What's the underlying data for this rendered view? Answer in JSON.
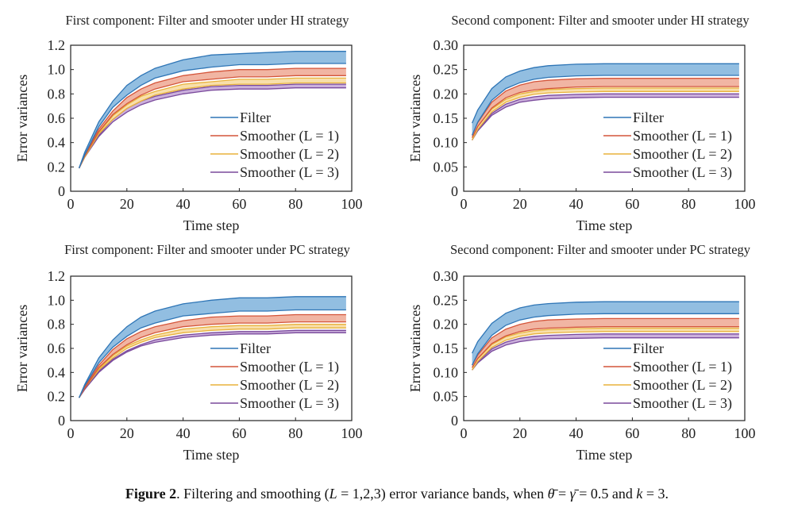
{
  "figure": {
    "caption_label": "Figure 2",
    "caption_text1": ". Filtering and smoothing (",
    "caption_L": "L",
    "caption_text2": " = 1,2,3) error variance bands, when ",
    "caption_theta": "θ̄",
    "caption_text3": " = ",
    "caption_gamma": "γ̄",
    "caption_text4": " = 0.5 and ",
    "caption_k": "k",
    "caption_text5": " = 3."
  },
  "colors": {
    "filter": {
      "line": "#2e75b6",
      "fill": "#7fb3dc"
    },
    "smoother1": {
      "line": "#d4553a",
      "fill": "#efa893"
    },
    "smoother2": {
      "line": "#e8b23c",
      "fill": "#f7d99c"
    },
    "smoother3": {
      "line": "#7a4a9c",
      "fill": "#c2a2d6"
    }
  },
  "chart_data": [
    {
      "type": "area",
      "title": "First component: Filter and smooter under HI strategy",
      "xlabel": "Time step",
      "ylabel": "Error variances",
      "xlim": [
        0,
        100
      ],
      "ylim": [
        0,
        1.2
      ],
      "xticks": [
        "0",
        "20",
        "40",
        "60",
        "80",
        "100"
      ],
      "yticks": [
        "0",
        "0.2",
        "0.4",
        "0.6",
        "0.8",
        "1.0",
        "1.2"
      ],
      "legend_position": "center-right",
      "x": [
        3,
        5,
        10,
        15,
        20,
        25,
        30,
        40,
        50,
        60,
        70,
        80,
        90,
        98
      ],
      "series": [
        {
          "name": "Filter",
          "key": "filter",
          "upper": [
            0.19,
            0.32,
            0.57,
            0.74,
            0.87,
            0.95,
            1.01,
            1.08,
            1.12,
            1.13,
            1.14,
            1.15,
            1.15,
            1.15
          ],
          "lower": [
            0.19,
            0.3,
            0.53,
            0.69,
            0.79,
            0.87,
            0.93,
            0.99,
            1.02,
            1.04,
            1.04,
            1.05,
            1.05,
            1.05
          ]
        },
        {
          "name": "Smoother (L = 1)",
          "key": "smoother1",
          "upper": [
            0.19,
            0.3,
            0.51,
            0.66,
            0.77,
            0.84,
            0.89,
            0.95,
            0.98,
            1.0,
            1.0,
            1.01,
            1.01,
            1.01
          ],
          "lower": [
            0.19,
            0.29,
            0.49,
            0.63,
            0.72,
            0.79,
            0.84,
            0.9,
            0.92,
            0.94,
            0.94,
            0.95,
            0.95,
            0.95
          ]
        },
        {
          "name": "Smoother (L = 2)",
          "key": "smoother2",
          "upper": [
            0.19,
            0.29,
            0.48,
            0.62,
            0.71,
            0.78,
            0.82,
            0.88,
            0.9,
            0.92,
            0.92,
            0.93,
            0.93,
            0.93
          ],
          "lower": [
            0.19,
            0.28,
            0.47,
            0.59,
            0.68,
            0.74,
            0.79,
            0.84,
            0.87,
            0.88,
            0.88,
            0.89,
            0.89,
            0.89
          ]
        },
        {
          "name": "Smoother (L = 3)",
          "key": "smoother3",
          "upper": [
            0.19,
            0.28,
            0.46,
            0.59,
            0.68,
            0.74,
            0.78,
            0.83,
            0.86,
            0.87,
            0.87,
            0.88,
            0.88,
            0.88
          ],
          "lower": [
            0.19,
            0.28,
            0.45,
            0.57,
            0.65,
            0.71,
            0.75,
            0.8,
            0.83,
            0.84,
            0.84,
            0.85,
            0.85,
            0.85
          ]
        }
      ]
    },
    {
      "type": "area",
      "title": "Second component: Filter and smooter under HI strategy",
      "xlabel": "Time step",
      "ylabel": "Error variances",
      "xlim": [
        0,
        100
      ],
      "ylim": [
        0,
        0.3
      ],
      "xticks": [
        "0",
        "20",
        "40",
        "60",
        "80",
        "100"
      ],
      "yticks": [
        "0",
        "0.05",
        "0.10",
        "0.15",
        "0.20",
        "0.25",
        "0.30"
      ],
      "legend_position": "center-right",
      "x": [
        3,
        5,
        10,
        15,
        20,
        25,
        30,
        40,
        50,
        60,
        70,
        80,
        90,
        98
      ],
      "series": [
        {
          "name": "Filter",
          "key": "filter",
          "upper": [
            0.14,
            0.167,
            0.211,
            0.235,
            0.247,
            0.254,
            0.258,
            0.261,
            0.262,
            0.262,
            0.262,
            0.262,
            0.262,
            0.262
          ],
          "lower": [
            0.115,
            0.142,
            0.187,
            0.211,
            0.223,
            0.23,
            0.234,
            0.237,
            0.238,
            0.238,
            0.238,
            0.238,
            0.238,
            0.238
          ]
        },
        {
          "name": "Smoother (L = 1)",
          "key": "smoother1",
          "upper": [
            0.115,
            0.141,
            0.183,
            0.206,
            0.218,
            0.225,
            0.228,
            0.231,
            0.232,
            0.232,
            0.232,
            0.232,
            0.232,
            0.232
          ],
          "lower": [
            0.11,
            0.133,
            0.171,
            0.192,
            0.203,
            0.208,
            0.211,
            0.214,
            0.215,
            0.215,
            0.215,
            0.215,
            0.215,
            0.215
          ]
        },
        {
          "name": "Smoother (L = 2)",
          "key": "smoother2",
          "upper": [
            0.11,
            0.133,
            0.169,
            0.189,
            0.2,
            0.205,
            0.209,
            0.211,
            0.212,
            0.212,
            0.212,
            0.212,
            0.212,
            0.212
          ],
          "lower": [
            0.105,
            0.127,
            0.163,
            0.183,
            0.193,
            0.199,
            0.202,
            0.204,
            0.205,
            0.205,
            0.205,
            0.205,
            0.205,
            0.205
          ]
        },
        {
          "name": "Smoother (L = 3)",
          "key": "smoother3",
          "upper": [
            0.105,
            0.126,
            0.16,
            0.179,
            0.189,
            0.194,
            0.197,
            0.199,
            0.2,
            0.2,
            0.2,
            0.2,
            0.2,
            0.2
          ],
          "lower": [
            0.105,
            0.124,
            0.156,
            0.173,
            0.183,
            0.187,
            0.19,
            0.192,
            0.193,
            0.193,
            0.193,
            0.193,
            0.193,
            0.193
          ]
        }
      ]
    },
    {
      "type": "area",
      "title": "First component: Filter and smooter under PC strategy",
      "xlabel": "Time step",
      "ylabel": "Error variances",
      "xlim": [
        0,
        100
      ],
      "ylim": [
        0,
        1.2
      ],
      "xticks": [
        "0",
        "20",
        "40",
        "60",
        "80",
        "100"
      ],
      "yticks": [
        "0",
        "0.2",
        "0.4",
        "0.6",
        "0.8",
        "1.0",
        "1.2"
      ],
      "legend_position": "center-right",
      "x": [
        3,
        5,
        10,
        15,
        20,
        25,
        30,
        40,
        50,
        60,
        70,
        80,
        90,
        98
      ],
      "series": [
        {
          "name": "Filter",
          "key": "filter",
          "upper": [
            0.19,
            0.3,
            0.52,
            0.67,
            0.78,
            0.86,
            0.91,
            0.97,
            1.0,
            1.02,
            1.02,
            1.03,
            1.03,
            1.03
          ],
          "lower": [
            0.19,
            0.29,
            0.48,
            0.61,
            0.7,
            0.77,
            0.81,
            0.87,
            0.89,
            0.91,
            0.91,
            0.92,
            0.92,
            0.92
          ]
        },
        {
          "name": "Smoother (L = 1)",
          "key": "smoother1",
          "upper": [
            0.19,
            0.28,
            0.46,
            0.59,
            0.68,
            0.74,
            0.78,
            0.83,
            0.86,
            0.87,
            0.87,
            0.88,
            0.88,
            0.88
          ],
          "lower": [
            0.19,
            0.27,
            0.44,
            0.55,
            0.63,
            0.69,
            0.73,
            0.78,
            0.8,
            0.81,
            0.81,
            0.82,
            0.82,
            0.82
          ]
        },
        {
          "name": "Smoother (L = 2)",
          "key": "smoother2",
          "upper": [
            0.19,
            0.27,
            0.43,
            0.54,
            0.62,
            0.67,
            0.71,
            0.76,
            0.78,
            0.79,
            0.79,
            0.8,
            0.8,
            0.8
          ],
          "lower": [
            0.19,
            0.27,
            0.42,
            0.52,
            0.6,
            0.65,
            0.69,
            0.73,
            0.75,
            0.76,
            0.76,
            0.77,
            0.77,
            0.77
          ]
        },
        {
          "name": "Smoother (L = 3)",
          "key": "smoother3",
          "upper": [
            0.19,
            0.26,
            0.41,
            0.51,
            0.58,
            0.63,
            0.67,
            0.71,
            0.73,
            0.74,
            0.74,
            0.75,
            0.75,
            0.75
          ],
          "lower": [
            0.19,
            0.26,
            0.4,
            0.5,
            0.57,
            0.62,
            0.65,
            0.69,
            0.71,
            0.72,
            0.72,
            0.73,
            0.73,
            0.73
          ]
        }
      ]
    },
    {
      "type": "area",
      "title": "Second component: Filter and smooter under PC strategy",
      "xlabel": "Time step",
      "ylabel": "Error variances",
      "xlim": [
        0,
        100
      ],
      "ylim": [
        0,
        0.3
      ],
      "xticks": [
        "0",
        "20",
        "40",
        "60",
        "80",
        "100"
      ],
      "yticks": [
        "0",
        "0.05",
        "0.10",
        "0.15",
        "0.20",
        "0.25",
        "0.30"
      ],
      "legend_position": "center-right",
      "x": [
        3,
        5,
        10,
        15,
        20,
        25,
        30,
        40,
        50,
        60,
        70,
        80,
        90,
        98
      ],
      "series": [
        {
          "name": "Filter",
          "key": "filter",
          "upper": [
            0.14,
            0.164,
            0.202,
            0.223,
            0.234,
            0.24,
            0.243,
            0.246,
            0.247,
            0.247,
            0.247,
            0.247,
            0.247,
            0.247
          ],
          "lower": [
            0.115,
            0.139,
            0.177,
            0.198,
            0.209,
            0.215,
            0.218,
            0.221,
            0.222,
            0.222,
            0.222,
            0.222,
            0.222,
            0.222
          ]
        },
        {
          "name": "Smoother (L = 1)",
          "key": "smoother1",
          "upper": [
            0.115,
            0.136,
            0.172,
            0.19,
            0.2,
            0.206,
            0.209,
            0.211,
            0.212,
            0.212,
            0.212,
            0.212,
            0.212,
            0.212
          ],
          "lower": [
            0.11,
            0.129,
            0.16,
            0.176,
            0.185,
            0.19,
            0.192,
            0.194,
            0.195,
            0.195,
            0.195,
            0.195,
            0.195,
            0.195
          ]
        },
        {
          "name": "Smoother (L = 2)",
          "key": "smoother2",
          "upper": [
            0.11,
            0.128,
            0.158,
            0.174,
            0.182,
            0.187,
            0.189,
            0.191,
            0.192,
            0.192,
            0.192,
            0.192,
            0.192,
            0.192
          ],
          "lower": [
            0.105,
            0.123,
            0.152,
            0.167,
            0.175,
            0.18,
            0.182,
            0.184,
            0.185,
            0.185,
            0.185,
            0.185,
            0.185,
            0.185
          ]
        },
        {
          "name": "Smoother (L = 3)",
          "key": "smoother3",
          "upper": [
            0.105,
            0.122,
            0.149,
            0.163,
            0.171,
            0.175,
            0.177,
            0.179,
            0.18,
            0.18,
            0.18,
            0.18,
            0.18,
            0.18
          ],
          "lower": [
            0.105,
            0.12,
            0.144,
            0.157,
            0.164,
            0.168,
            0.17,
            0.171,
            0.172,
            0.172,
            0.172,
            0.172,
            0.172,
            0.172
          ]
        }
      ]
    }
  ]
}
